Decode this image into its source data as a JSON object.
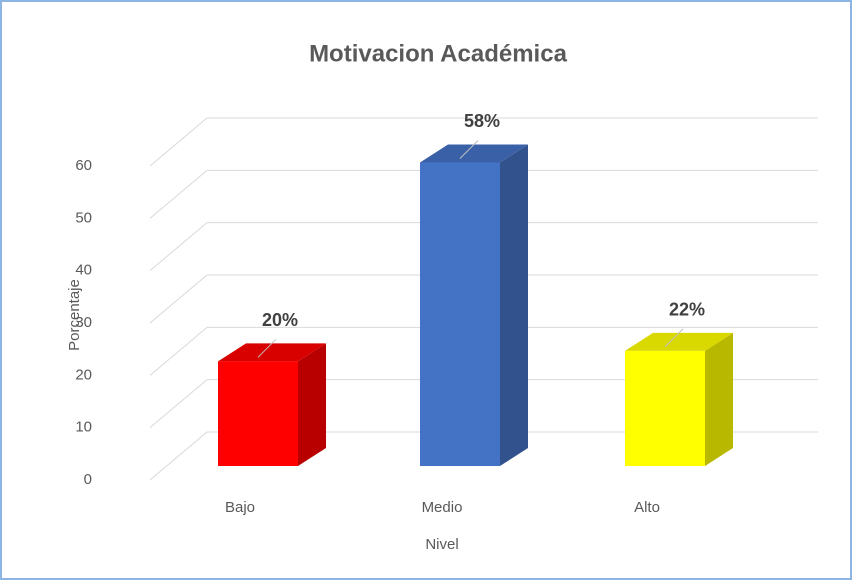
{
  "chart_data": {
    "type": "bar3d",
    "title": "Motivacion Académica",
    "x_label": "Nivel",
    "y_label": "Porcentaje",
    "categories": [
      "Bajo",
      "Medio",
      "Alto"
    ],
    "values": [
      20,
      58,
      22
    ],
    "value_labels": [
      "20%",
      "58%",
      "22%"
    ],
    "colors": [
      "#ff0000",
      "#4472c4",
      "#ffff00"
    ],
    "ylim": [
      0,
      60
    ],
    "yticks": [
      0,
      10,
      20,
      30,
      40,
      50,
      60
    ],
    "grid": true
  }
}
